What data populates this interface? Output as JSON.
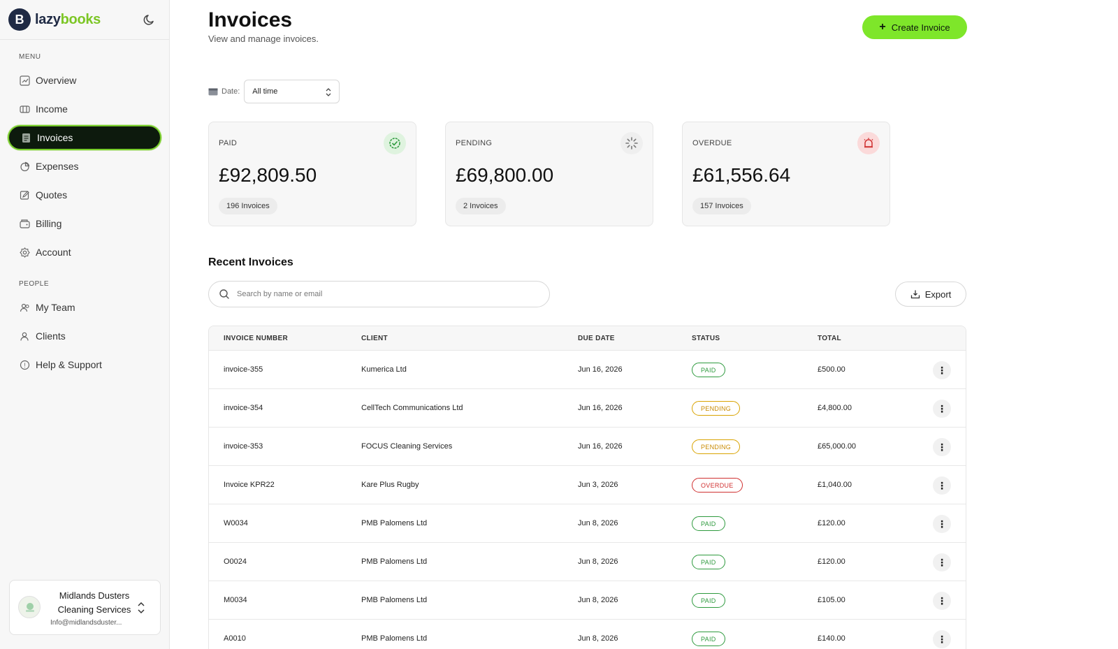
{
  "brand": {
    "logo_letter": "B",
    "name_part1": "lazy",
    "name_part2": "books"
  },
  "sidebar": {
    "menu_label": "MENU",
    "people_label": "PEOPLE",
    "items": [
      {
        "label": "Overview",
        "icon": "chart-icon"
      },
      {
        "label": "Income",
        "icon": "wallet-icon"
      },
      {
        "label": "Invoices",
        "icon": "invoice-icon",
        "active": true
      },
      {
        "label": "Expenses",
        "icon": "pie-icon"
      },
      {
        "label": "Quotes",
        "icon": "edit-doc-icon"
      },
      {
        "label": "Billing",
        "icon": "card-icon"
      },
      {
        "label": "Account",
        "icon": "gear-icon"
      }
    ],
    "people_items": [
      {
        "label": "My Team",
        "icon": "team-icon"
      },
      {
        "label": "Clients",
        "icon": "user-icon"
      },
      {
        "label": "Help & Support",
        "icon": "help-icon"
      }
    ],
    "org": {
      "name": "Midlands Dusters Cleaning Services",
      "email": "Info@midlandsduster..."
    }
  },
  "header": {
    "title": "Invoices",
    "subtitle": "View and manage invoices.",
    "create_label": "Create Invoice"
  },
  "filter": {
    "label": "Date:",
    "value": "All time"
  },
  "stats": [
    {
      "label": "PAID",
      "value": "£92,809.50",
      "count": "196 Invoices",
      "color": "#2e9a3e"
    },
    {
      "label": "PENDING",
      "value": "£69,800.00",
      "count": "2 Invoices",
      "color": "#777777"
    },
    {
      "label": "OVERDUE",
      "value": "£61,556.64",
      "count": "157 Invoices",
      "color": "#d03030"
    }
  ],
  "recent": {
    "title": "Recent Invoices",
    "search_placeholder": "Search by name or email",
    "export_label": "Export",
    "columns": [
      "INVOICE NUMBER",
      "CLIENT",
      "DUE DATE",
      "STATUS",
      "TOTAL"
    ],
    "rows": [
      {
        "number": "invoice-355",
        "client": "Kumerica Ltd",
        "due": "Jun 16, 2026",
        "status": "PAID",
        "total": "£500.00"
      },
      {
        "number": "invoice-354",
        "client": "CellTech Communications Ltd",
        "due": "Jun 16, 2026",
        "status": "PENDING",
        "total": "£4,800.00"
      },
      {
        "number": "invoice-353",
        "client": "FOCUS Cleaning Services",
        "due": "Jun 16, 2026",
        "status": "PENDING",
        "total": "£65,000.00"
      },
      {
        "number": "Invoice KPR22",
        "client": "Kare Plus Rugby",
        "due": "Jun 3, 2026",
        "status": "OVERDUE",
        "total": "£1,040.00"
      },
      {
        "number": "W0034",
        "client": "PMB Palomens Ltd",
        "due": "Jun 8, 2026",
        "status": "PAID",
        "total": "£120.00"
      },
      {
        "number": "O0024",
        "client": "PMB Palomens Ltd",
        "due": "Jun 8, 2026",
        "status": "PAID",
        "total": "£120.00"
      },
      {
        "number": "M0034",
        "client": "PMB Palomens Ltd",
        "due": "Jun 8, 2026",
        "status": "PAID",
        "total": "£105.00"
      },
      {
        "number": "A0010",
        "client": "PMB Palomens Ltd",
        "due": "Jun 8, 2026",
        "status": "PAID",
        "total": "£140.00"
      }
    ]
  },
  "colors": {
    "accent": "#7ee62a",
    "dark": "#0d1a0d",
    "paid": "#2e9a3e",
    "pending": "#c98a00",
    "overdue": "#d03030"
  }
}
